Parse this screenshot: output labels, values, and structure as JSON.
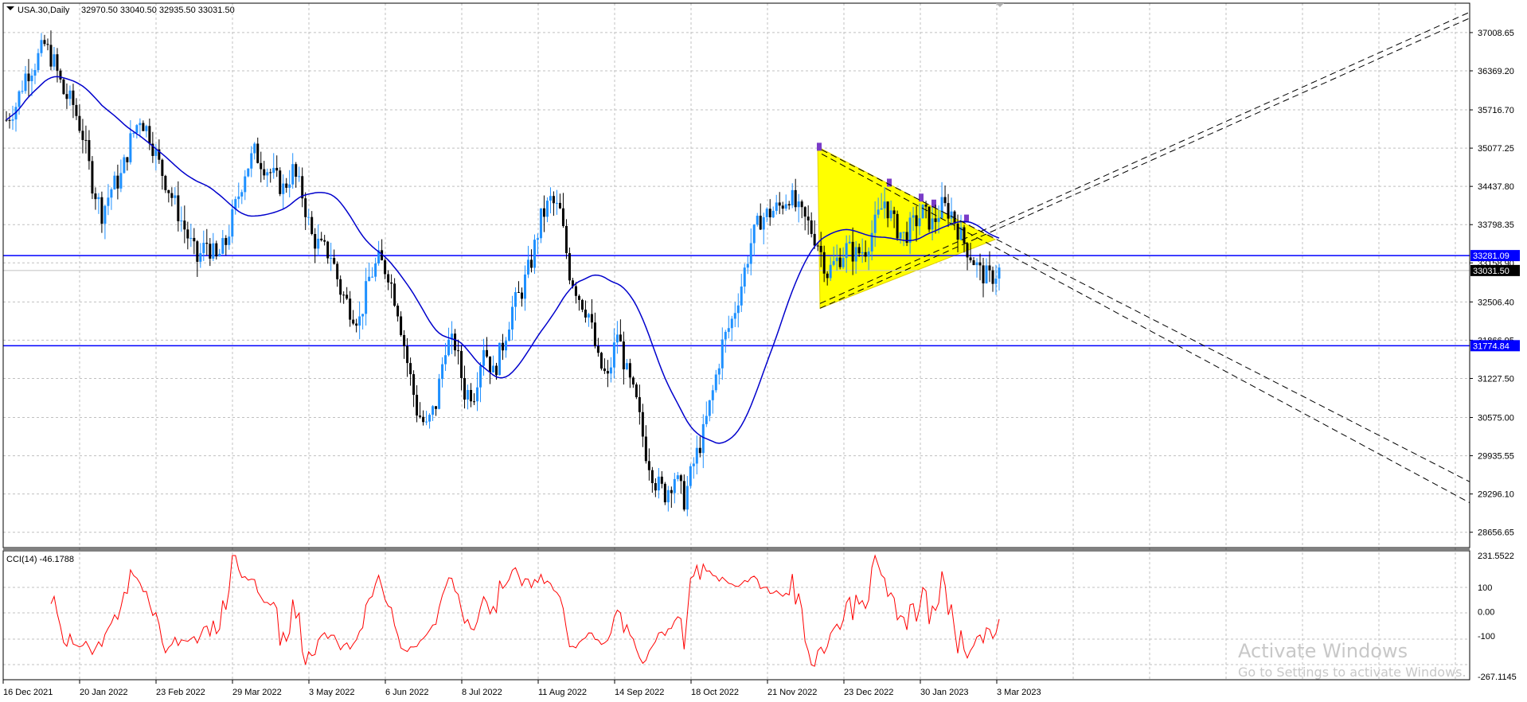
{
  "header": {
    "symbol_label": "USA.30,Daily",
    "ohlc": "32970.50 33040.50 32935.50 33031.50"
  },
  "price_axis": {
    "ticks": [
      "37008.65",
      "36369.20",
      "35716.70",
      "35077.25",
      "34437.80",
      "33798.35",
      "33158.90",
      "32506.40",
      "31866.95",
      "31227.50",
      "30575.00",
      "29935.55",
      "29296.10",
      "28656.65"
    ],
    "tags": [
      {
        "text": "33281.09",
        "style": "line",
        "color": "#0000ff"
      },
      {
        "text": "33031.50",
        "style": "current",
        "color": "#000000"
      },
      {
        "text": "31774.84",
        "style": "line",
        "color": "#0000ff"
      }
    ]
  },
  "horizontal_lines": [
    {
      "price": 33281.09,
      "color": "#0000ff"
    },
    {
      "price": 31774.84,
      "color": "#0000ff"
    }
  ],
  "current_price": 33031.5,
  "indicator": {
    "label": "CCI(14) -46.1788",
    "ticks": [
      "231.5522",
      "100",
      "0.00",
      "-100",
      "-267.1145"
    ]
  },
  "time_axis": {
    "labels": [
      "16 Dec 2021",
      "20 Jan 2022",
      "23 Feb 2022",
      "29 Mar 2022",
      "3 May 2022",
      "6 Jun 2022",
      "8 Jul 2022",
      "11 Aug 2022",
      "14 Sep 2022",
      "18 Oct 2022",
      "21 Nov 2022",
      "23 Dec 2022",
      "30 Jan 2023",
      "3 Mar 2023"
    ]
  },
  "watermark": {
    "line1": "Activate Windows",
    "line2": "Go to Settings to activate Windows."
  },
  "colors": {
    "bull": "#1e90ff",
    "bear": "#000000",
    "ma": "#0000cc",
    "cci": "#ff0000",
    "triangle": "#ffff00",
    "grid": "#c0c0c0",
    "level": "#0000ff"
  },
  "chart_data": {
    "type": "candlestick",
    "title": "USA.30,Daily",
    "price_range": [
      28400,
      37500
    ],
    "close_series": [
      [
        0,
        35550
      ],
      [
        3,
        35800
      ],
      [
        6,
        36300
      ],
      [
        9,
        36500
      ],
      [
        12,
        36800
      ],
      [
        15,
        36500
      ],
      [
        18,
        36000
      ],
      [
        21,
        35800
      ],
      [
        24,
        35300
      ],
      [
        27,
        34500
      ],
      [
        30,
        34000
      ],
      [
        33,
        34400
      ],
      [
        36,
        34600
      ],
      [
        39,
        35200
      ],
      [
        42,
        35600
      ],
      [
        45,
        35300
      ],
      [
        48,
        34800
      ],
      [
        51,
        34400
      ],
      [
        54,
        34000
      ],
      [
        57,
        33600
      ],
      [
        60,
        33200
      ],
      [
        63,
        33500
      ],
      [
        66,
        33200
      ],
      [
        69,
        33500
      ],
      [
        72,
        34100
      ],
      [
        75,
        34700
      ],
      [
        78,
        35000
      ],
      [
        81,
        34800
      ],
      [
        84,
        34600
      ],
      [
        87,
        34400
      ],
      [
        90,
        34700
      ],
      [
        93,
        34300
      ],
      [
        96,
        33600
      ],
      [
        99,
        33400
      ],
      [
        102,
        33300
      ],
      [
        105,
        32700
      ],
      [
        108,
        32400
      ],
      [
        111,
        32200
      ],
      [
        114,
        32900
      ],
      [
        117,
        33200
      ],
      [
        120,
        33000
      ],
      [
        123,
        32400
      ],
      [
        126,
        31500
      ],
      [
        129,
        30700
      ],
      [
        132,
        30400
      ],
      [
        135,
        30800
      ],
      [
        138,
        31800
      ],
      [
        141,
        31800
      ],
      [
        144,
        31000
      ],
      [
        147,
        31000
      ],
      [
        150,
        31800
      ],
      [
        153,
        31300
      ],
      [
        156,
        31800
      ],
      [
        159,
        32400
      ],
      [
        162,
        32700
      ],
      [
        165,
        33200
      ],
      [
        168,
        33900
      ],
      [
        171,
        34200
      ],
      [
        174,
        34000
      ],
      [
        177,
        33000
      ],
      [
        180,
        32600
      ],
      [
        183,
        32300
      ],
      [
        186,
        31500
      ],
      [
        189,
        31200
      ],
      [
        192,
        32000
      ],
      [
        195,
        31300
      ],
      [
        198,
        30800
      ],
      [
        201,
        30000
      ],
      [
        204,
        29500
      ],
      [
        207,
        29300
      ],
      [
        210,
        29600
      ],
      [
        213,
        29200
      ],
      [
        216,
        29800
      ],
      [
        219,
        30300
      ],
      [
        222,
        31000
      ],
      [
        225,
        31800
      ],
      [
        228,
        32200
      ],
      [
        231,
        32800
      ],
      [
        234,
        33500
      ],
      [
        237,
        33900
      ],
      [
        240,
        34000
      ],
      [
        243,
        34100
      ],
      [
        246,
        34300
      ],
      [
        249,
        34000
      ],
      [
        252,
        33800
      ],
      [
        255,
        33500
      ],
      [
        258,
        33000
      ],
      [
        261,
        33200
      ],
      [
        264,
        33400
      ],
      [
        267,
        33300
      ],
      [
        270,
        33400
      ],
      [
        273,
        33800
      ],
      [
        276,
        34200
      ],
      [
        279,
        33800
      ],
      [
        282,
        33600
      ],
      [
        285,
        33800
      ],
      [
        288,
        34000
      ],
      [
        291,
        33800
      ],
      [
        294,
        34100
      ],
      [
        297,
        34000
      ],
      [
        300,
        33600
      ],
      [
        303,
        33300
      ],
      [
        306,
        33000
      ],
      [
        309,
        32900
      ],
      [
        312,
        33031.5
      ]
    ],
    "moving_average": "line",
    "levels": [
      33281.09,
      31774.84
    ],
    "indicator": {
      "name": "CCI(14)",
      "last": -46.1788,
      "range": [
        -267.1145,
        231.5522
      ]
    }
  }
}
